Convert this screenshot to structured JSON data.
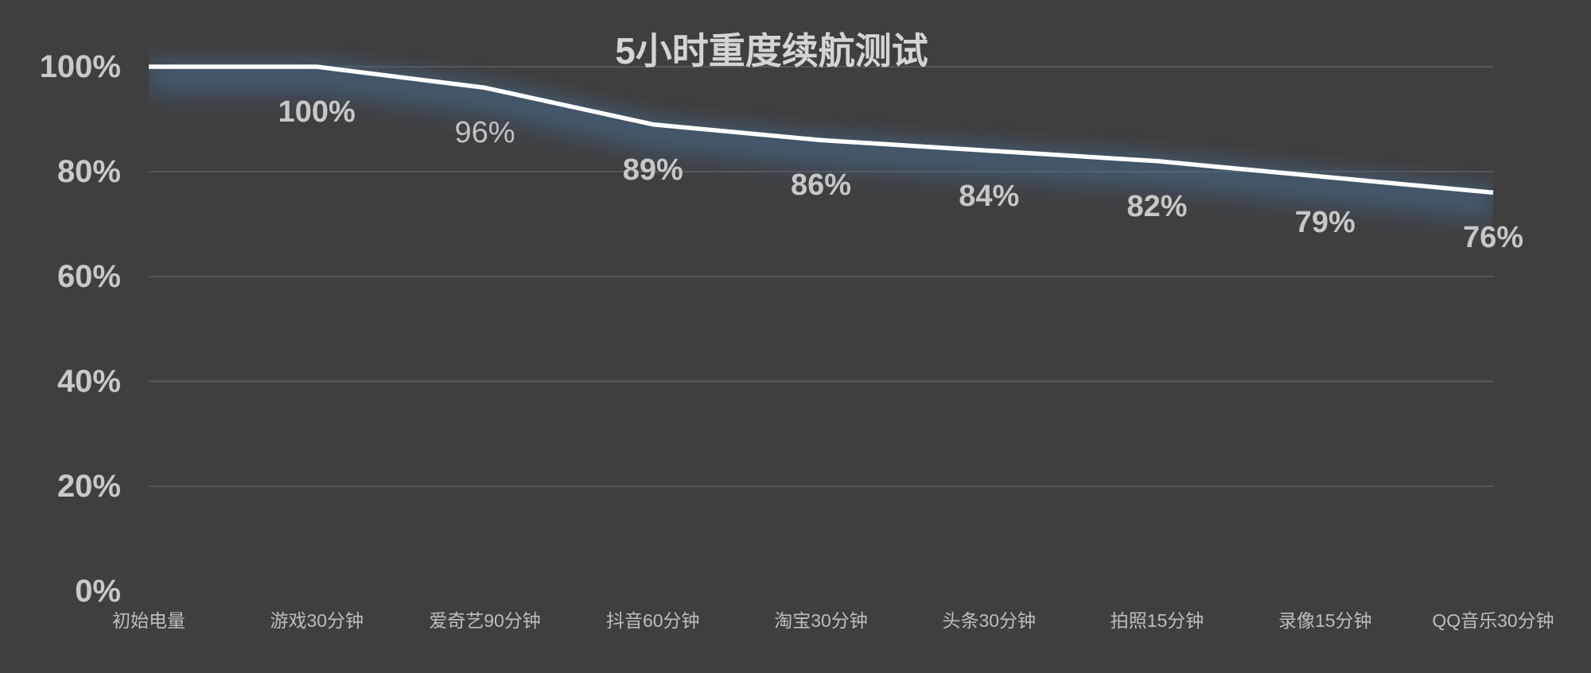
{
  "colors": {
    "background": "#3f3f3f",
    "gridline": "#565656",
    "title_text": "#d4d4d4",
    "axis_text": "#c9c9c9",
    "category_text": "#bdbdbd",
    "data_label_text": "#c7c7c7",
    "line": "#ffffff",
    "line_glow": "#46698c"
  },
  "chart_data": {
    "type": "line",
    "title": "5小时重度续航测试",
    "categories": [
      "初始电量",
      "游戏30分钟",
      "爱奇艺90分钟",
      "抖音60分钟",
      "淘宝30分钟",
      "头条30分钟",
      "拍照15分钟",
      "录像15分钟",
      "QQ音乐30分钟"
    ],
    "values": [
      100,
      100,
      96,
      89,
      86,
      84,
      82,
      79,
      76
    ],
    "point_labels": [
      "",
      "100%",
      "96%",
      "89%",
      "86%",
      "84%",
      "82%",
      "79%",
      "76%"
    ],
    "light_weight_labels": [
      "96%"
    ],
    "xlabel": "",
    "ylabel": "",
    "y_axis": {
      "range": [
        0,
        100
      ],
      "tick_labels": [
        "100%",
        "80%",
        "60%",
        "40%",
        "20%",
        "0%"
      ],
      "tick_values": [
        100,
        80,
        60,
        40,
        20,
        0
      ],
      "gridlines_at": [
        100,
        80,
        60,
        40,
        20
      ]
    },
    "grid": "horizontal only, none at 0%",
    "legend": "none",
    "line_style": "white 5px line with soft steel-blue glow below, clipped to plot area"
  }
}
